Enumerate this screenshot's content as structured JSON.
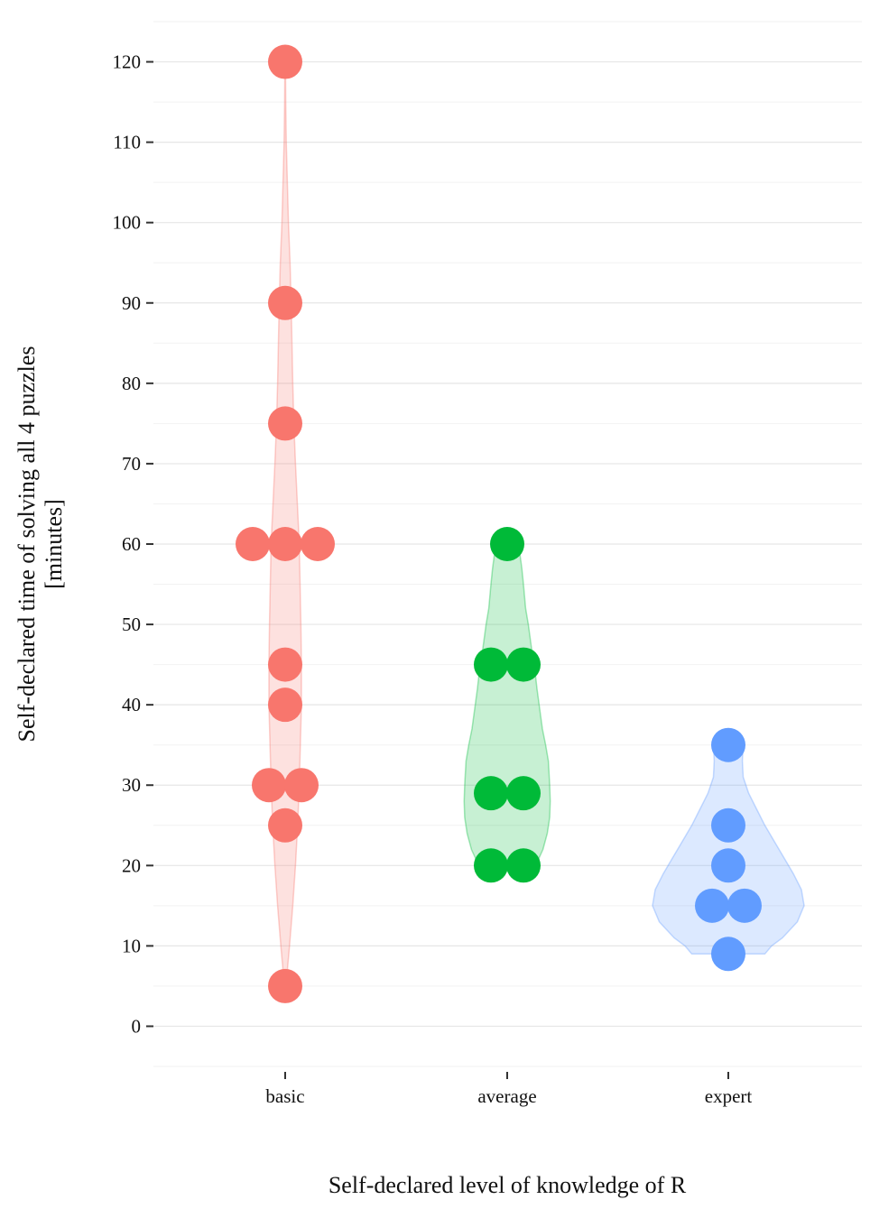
{
  "chart_data": {
    "type": "violin",
    "xlabel": "Self-declared level of knowledge of R",
    "ylabel_lines": [
      "Self-declared time of solving all 4 puzzles",
      "[minutes]"
    ],
    "ylim": [
      -5,
      125
    ],
    "yticks": [
      0,
      10,
      20,
      30,
      40,
      50,
      60,
      70,
      80,
      90,
      100,
      110,
      120
    ],
    "grid": true,
    "categories": [
      "basic",
      "average",
      "expert"
    ],
    "series": [
      {
        "category": "basic",
        "color": "#F8766D",
        "fill": "#F8766D",
        "points": [
          {
            "y": 120,
            "dx": 0
          },
          {
            "y": 90,
            "dx": 0
          },
          {
            "y": 75,
            "dx": 0
          },
          {
            "y": 60,
            "dx": -1
          },
          {
            "y": 60,
            "dx": 0
          },
          {
            "y": 60,
            "dx": 1
          },
          {
            "y": 45,
            "dx": 0
          },
          {
            "y": 40,
            "dx": 0
          },
          {
            "y": 30,
            "dx": -0.5
          },
          {
            "y": 30,
            "dx": 0.5
          },
          {
            "y": 25,
            "dx": 0
          },
          {
            "y": 5,
            "dx": 0
          }
        ],
        "violin_profile": [
          [
            120,
            0.01
          ],
          [
            115,
            0.02
          ],
          [
            110,
            0.04
          ],
          [
            105,
            0.08
          ],
          [
            100,
            0.12
          ],
          [
            95,
            0.18
          ],
          [
            90,
            0.22
          ],
          [
            85,
            0.25
          ],
          [
            80,
            0.28
          ],
          [
            75,
            0.32
          ],
          [
            70,
            0.38
          ],
          [
            65,
            0.45
          ],
          [
            60,
            0.52
          ],
          [
            55,
            0.55
          ],
          [
            50,
            0.58
          ],
          [
            45,
            0.6
          ],
          [
            40,
            0.6
          ],
          [
            35,
            0.56
          ],
          [
            30,
            0.52
          ],
          [
            25,
            0.46
          ],
          [
            20,
            0.38
          ],
          [
            15,
            0.28
          ],
          [
            10,
            0.16
          ],
          [
            7,
            0.08
          ],
          [
            5,
            0.02
          ]
        ]
      },
      {
        "category": "average",
        "color": "#00BA38",
        "fill": "#00BA38",
        "points": [
          {
            "y": 60,
            "dx": 0
          },
          {
            "y": 45,
            "dx": -0.5
          },
          {
            "y": 45,
            "dx": 0.5
          },
          {
            "y": 29,
            "dx": -0.5
          },
          {
            "y": 29,
            "dx": 0.5
          },
          {
            "y": 20,
            "dx": -0.5
          },
          {
            "y": 20,
            "dx": 0.5
          }
        ],
        "violin_profile": [
          [
            60,
            0.42
          ],
          [
            57,
            0.54
          ],
          [
            55,
            0.6
          ],
          [
            52,
            0.68
          ],
          [
            50,
            0.78
          ],
          [
            47,
            0.9
          ],
          [
            45,
            1.0
          ],
          [
            42,
            1.1
          ],
          [
            40,
            1.18
          ],
          [
            37,
            1.3
          ],
          [
            35,
            1.42
          ],
          [
            33,
            1.52
          ],
          [
            30,
            1.57
          ],
          [
            28,
            1.59
          ],
          [
            26,
            1.57
          ],
          [
            24,
            1.48
          ],
          [
            22,
            1.32
          ],
          [
            20,
            1.05
          ]
        ]
      },
      {
        "category": "expert",
        "color": "#619CFF",
        "fill": "#619CFF",
        "points": [
          {
            "y": 35,
            "dx": 0
          },
          {
            "y": 25,
            "dx": 0
          },
          {
            "y": 20,
            "dx": 0
          },
          {
            "y": 15,
            "dx": -0.5
          },
          {
            "y": 15,
            "dx": 0.5
          },
          {
            "y": 9,
            "dx": 0
          }
        ],
        "violin_profile": [
          [
            35,
            0.55
          ],
          [
            33,
            0.52
          ],
          [
            31,
            0.55
          ],
          [
            29,
            0.75
          ],
          [
            27,
            1.05
          ],
          [
            25,
            1.35
          ],
          [
            23,
            1.7
          ],
          [
            21,
            2.05
          ],
          [
            19,
            2.4
          ],
          [
            17,
            2.7
          ],
          [
            15,
            2.8
          ],
          [
            13,
            2.55
          ],
          [
            11,
            2.0
          ],
          [
            10,
            1.6
          ],
          [
            9,
            1.35
          ]
        ]
      }
    ]
  }
}
